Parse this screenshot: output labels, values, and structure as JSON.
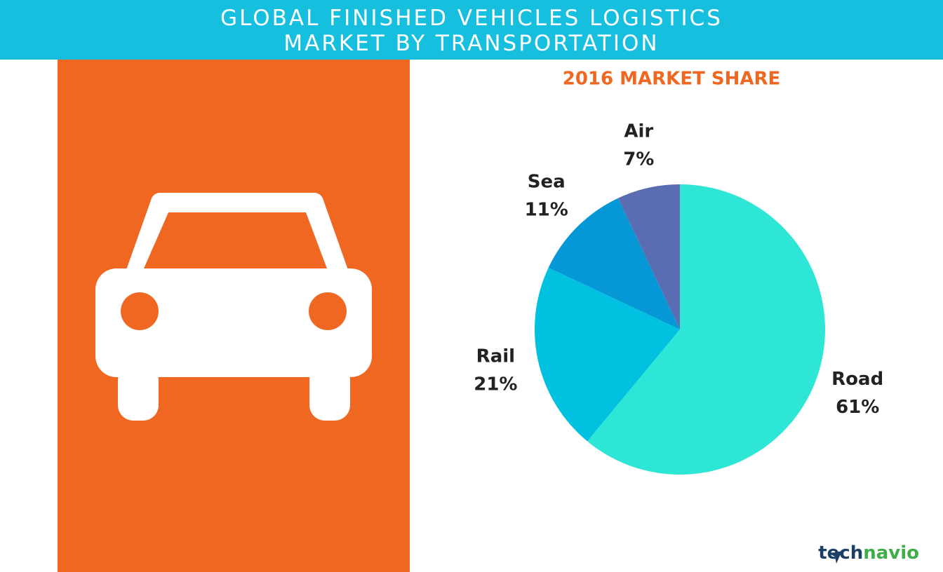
{
  "chart_data": {
    "type": "pie",
    "title": [
      "GLOBAL FINISHED VEHICLES LOGISTICS",
      "MARKET BY TRANSPORTATION"
    ],
    "subtitle": "2016 MARKET SHARE",
    "categories": [
      "Road",
      "Rail",
      "Sea",
      "Air"
    ],
    "values": [
      61,
      21,
      11,
      7
    ],
    "value_labels": [
      "61%",
      "21%",
      "11%",
      "7%"
    ],
    "colors": [
      "#2ee6d6",
      "#00c1e0",
      "#0597d6",
      "#5a6db2"
    ]
  },
  "brand": [
    "tech",
    "navio"
  ]
}
